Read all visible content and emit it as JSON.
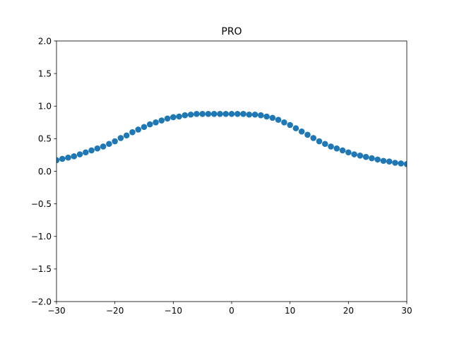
{
  "chart_data": {
    "type": "scatter",
    "title": "PRO",
    "xlabel": "",
    "ylabel": "",
    "xlim": [
      -30,
      30
    ],
    "ylim": [
      -2.0,
      2.0
    ],
    "grid": false,
    "x_ticks": [
      -30,
      -20,
      -10,
      0,
      10,
      20,
      30
    ],
    "y_ticks": [
      -2.0,
      -1.5,
      -1.0,
      -0.5,
      0.0,
      0.5,
      1.0,
      1.5,
      2.0
    ],
    "x_tick_labels": [
      "−30",
      "−20",
      "−10",
      "0",
      "10",
      "20",
      "30"
    ],
    "y_tick_labels": [
      "−2.0",
      "−1.5",
      "−1.0",
      "−0.5",
      "0.0",
      "0.5",
      "1.0",
      "1.5",
      "2.0"
    ],
    "marker_color": "#1f77b4",
    "series": [
      {
        "x": [
          -30,
          -29,
          -28,
          -27,
          -26,
          -25,
          -24,
          -23,
          -22,
          -21,
          -20,
          -19,
          -18,
          -17,
          -16,
          -15,
          -14,
          -13,
          -12,
          -11,
          -10,
          -9,
          -8,
          -7,
          -6,
          -5,
          -4,
          -3,
          -2,
          -1,
          0,
          1,
          2,
          3,
          4,
          5,
          6,
          7,
          8,
          9,
          10,
          11,
          12,
          13,
          14,
          15,
          16,
          17,
          18,
          19,
          20,
          21,
          22,
          23,
          24,
          25,
          26,
          27,
          28,
          29,
          30
        ],
        "y": [
          0.17,
          0.19,
          0.21,
          0.23,
          0.26,
          0.29,
          0.32,
          0.35,
          0.38,
          0.42,
          0.46,
          0.51,
          0.55,
          0.6,
          0.64,
          0.68,
          0.72,
          0.75,
          0.78,
          0.81,
          0.83,
          0.84,
          0.86,
          0.87,
          0.88,
          0.88,
          0.88,
          0.88,
          0.88,
          0.88,
          0.88,
          0.88,
          0.88,
          0.87,
          0.87,
          0.86,
          0.84,
          0.82,
          0.79,
          0.75,
          0.71,
          0.66,
          0.61,
          0.56,
          0.51,
          0.46,
          0.42,
          0.38,
          0.35,
          0.32,
          0.29,
          0.26,
          0.24,
          0.22,
          0.2,
          0.18,
          0.16,
          0.15,
          0.13,
          0.12,
          0.11
        ]
      }
    ]
  }
}
